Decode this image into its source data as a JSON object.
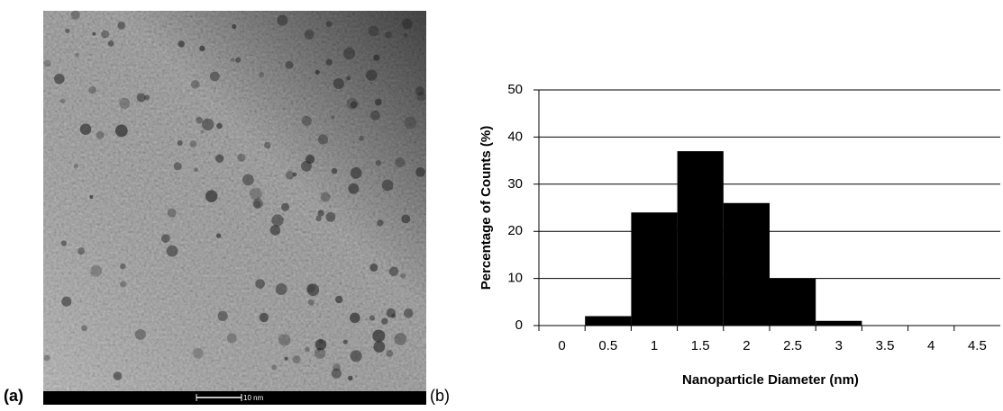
{
  "panels": {
    "a_label": "(a)",
    "b_label": "(b)",
    "scale_bar": "10 nm"
  },
  "chart_data": {
    "type": "bar",
    "categories": [
      "0",
      "0.5",
      "1",
      "1.5",
      "2",
      "2.5",
      "3",
      "3.5",
      "4",
      "4.5"
    ],
    "values": [
      0,
      2,
      24,
      37,
      26,
      10,
      1,
      0,
      0,
      0
    ],
    "color": "#000000",
    "x_label": "Nanoparticle Diameter (nm)",
    "y_label": "Percentage of Counts (%)",
    "ylim": [
      0,
      50
    ],
    "yticks": [
      0,
      10,
      20,
      30,
      40,
      50
    ],
    "grid": true
  }
}
